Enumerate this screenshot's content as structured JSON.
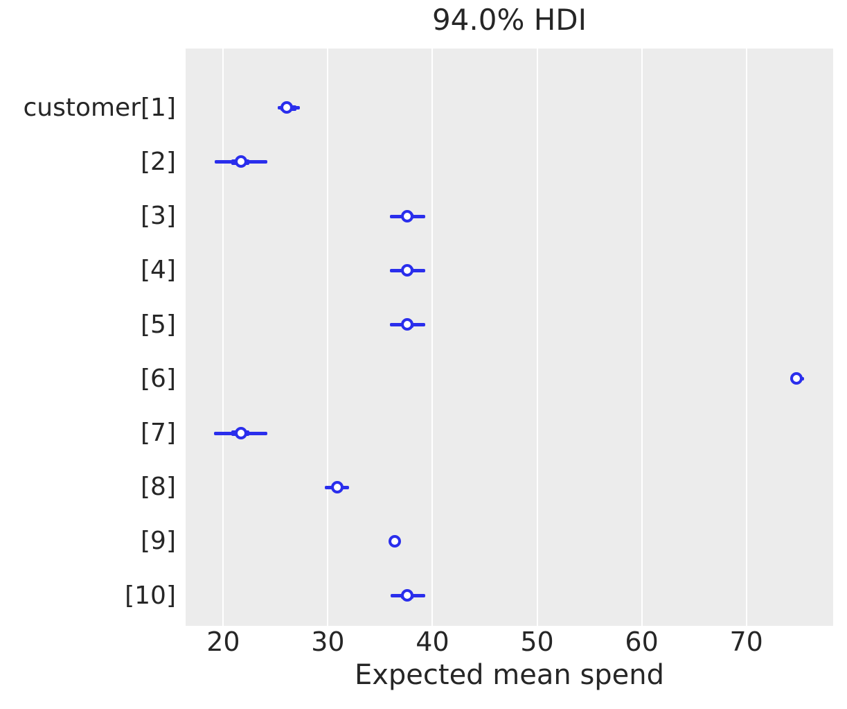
{
  "chart_data": {
    "type": "forest",
    "title": "94.0% HDI",
    "xlabel": "Expected mean spend",
    "ylabel": "",
    "x_ticks": [
      20,
      30,
      40,
      50,
      60,
      70
    ],
    "xlim": [
      16.4,
      78.3
    ],
    "grid": "vertical-white-on-gray",
    "legend": null,
    "colors": {
      "interval": "#2a2eec",
      "marker_face": "#ffffff",
      "plot_bg": "#ececec",
      "gridline": "#ffffff",
      "text": "#262626"
    },
    "rows": [
      {
        "label": "customer[1]",
        "point": 26.1,
        "hdi": [
          25.2,
          27.3
        ],
        "quartile": [
          25.5,
          27.0
        ]
      },
      {
        "label": "[2]",
        "point": 21.7,
        "hdi": [
          19.2,
          24.2
        ],
        "quartile": [
          20.8,
          22.5
        ]
      },
      {
        "label": "[3]",
        "point": 37.6,
        "hdi": [
          35.9,
          39.3
        ],
        "quartile": [
          37.1,
          38.2
        ]
      },
      {
        "label": "[4]",
        "point": 37.6,
        "hdi": [
          35.9,
          39.3
        ],
        "quartile": [
          37.1,
          38.2
        ]
      },
      {
        "label": "[5]",
        "point": 37.6,
        "hdi": [
          35.9,
          39.3
        ],
        "quartile": [
          37.1,
          38.2
        ]
      },
      {
        "label": "[6]",
        "point": 74.8,
        "hdi": [
          74.2,
          75.5
        ],
        "quartile": [
          74.3,
          75.3
        ]
      },
      {
        "label": "[7]",
        "point": 21.7,
        "hdi": [
          19.1,
          24.2
        ],
        "quartile": [
          20.8,
          22.5
        ]
      },
      {
        "label": "[8]",
        "point": 30.9,
        "hdi": [
          29.7,
          32.0
        ],
        "quartile": [
          30.4,
          31.4
        ]
      },
      {
        "label": "[9]",
        "point": 36.4,
        "hdi": [
          36.3,
          36.6
        ],
        "quartile": [
          36.3,
          36.6
        ]
      },
      {
        "label": "[10]",
        "point": 37.6,
        "hdi": [
          36.0,
          39.3
        ],
        "quartile": [
          37.0,
          38.2
        ]
      }
    ]
  }
}
